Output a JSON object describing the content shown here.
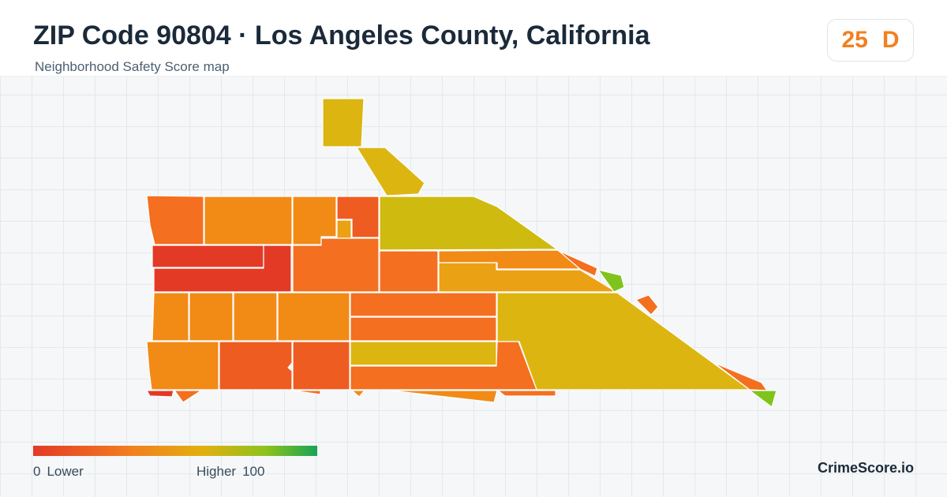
{
  "header": {
    "title": "ZIP Code 90804 · Los Angeles County, California",
    "subtitle": "Neighborhood Safety Score map"
  },
  "score_badge": {
    "score": "25",
    "grade": "D",
    "color": "#f2801f"
  },
  "legend": {
    "low_value": "0",
    "low_label": "Lower",
    "high_label": "Higher",
    "high_value": "100",
    "colors": [
      "#e33a26",
      "#f2801f",
      "#e0b010",
      "#8dc21c",
      "#17a454"
    ]
  },
  "brand": "CrimeScore.io",
  "map": {
    "zip": "90804",
    "region_colors": {
      "red": "#e33a26",
      "red_orange": "#ee5c22",
      "orange": "#f46f1f",
      "light_orange": "#f28a16",
      "amber": "#eba114",
      "yellow": "#dcb511",
      "olive": "#cfba0f",
      "green": "#7fc41c"
    }
  }
}
